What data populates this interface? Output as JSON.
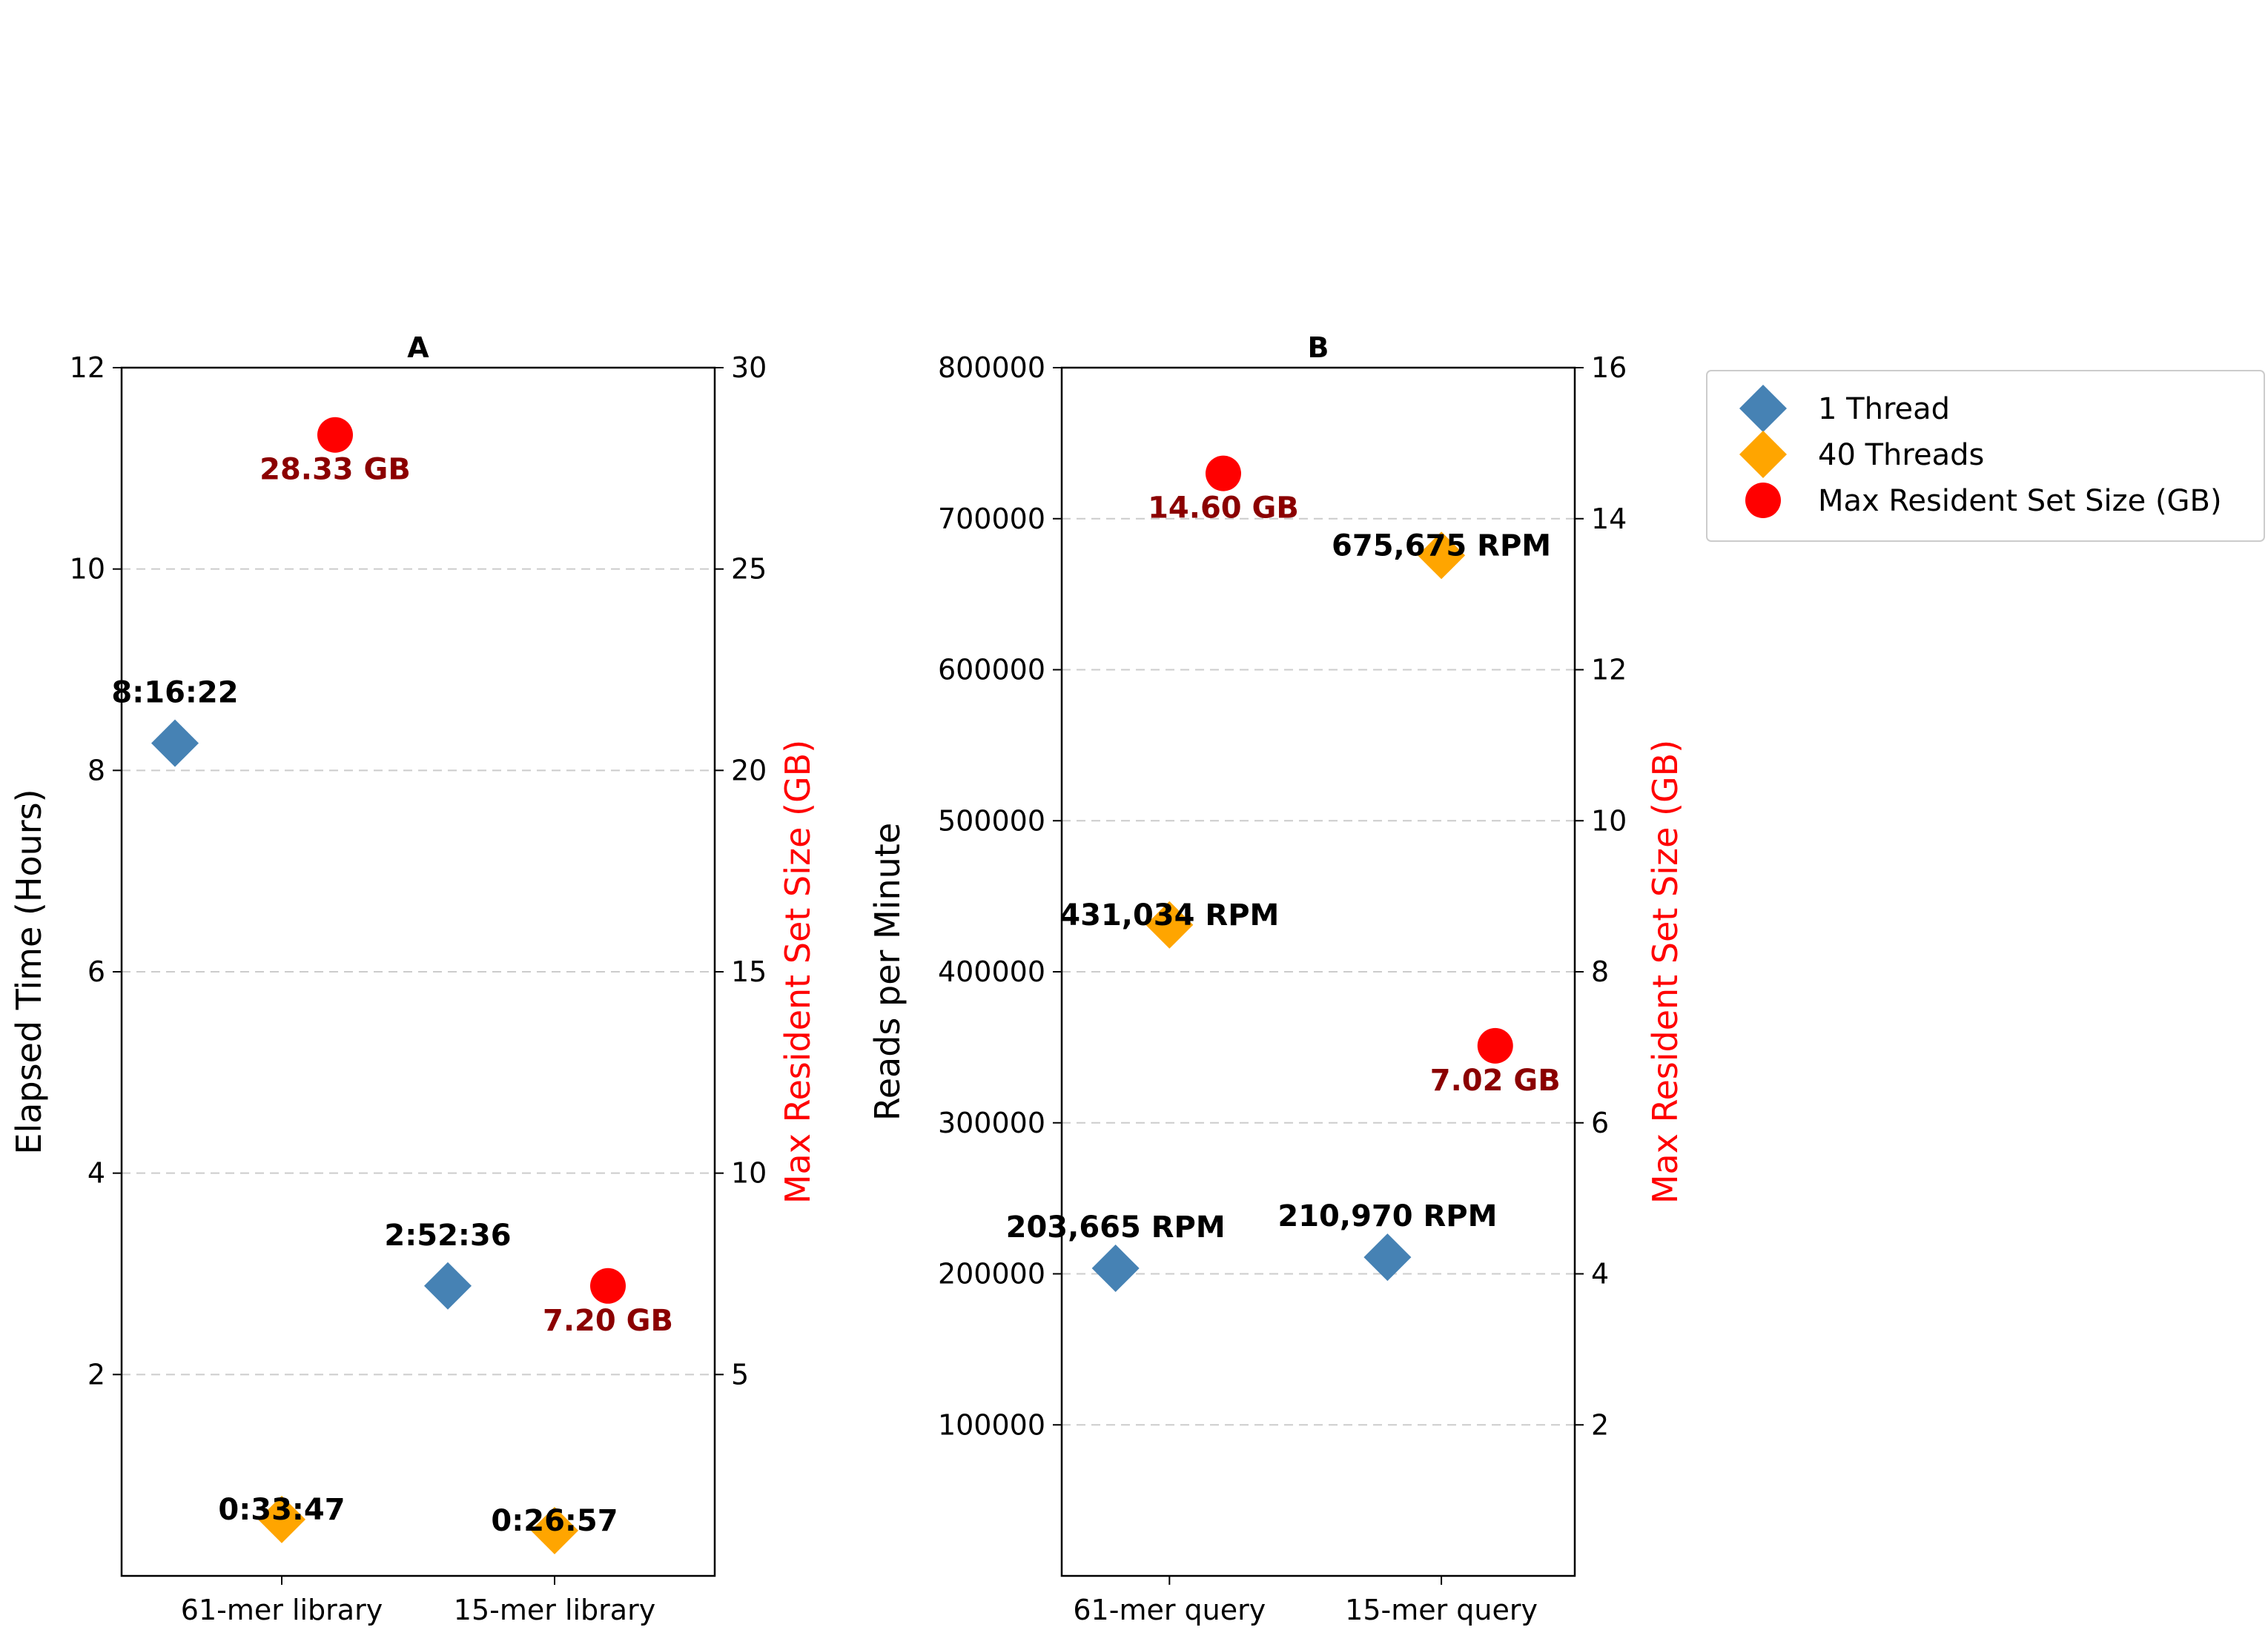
{
  "colors": {
    "thread1": "#4682B4",
    "thread40": "#FFA500",
    "rss": "#FF0000",
    "rss_label": "#8B0000",
    "rss_axis_label": "#FF0000",
    "grid": "#cccccc"
  },
  "legend": {
    "placement": "right of figure, top",
    "items": [
      {
        "label": "1 Thread",
        "marker": "diamond",
        "color": "#4682B4"
      },
      {
        "label": "40 Threads",
        "marker": "diamond",
        "color": "#FFA500"
      },
      {
        "label": "Max Resident Set Size (GB)",
        "marker": "circle",
        "color": "#FF0000"
      }
    ]
  },
  "chart_data": [
    {
      "panel": "A",
      "type": "scatter",
      "title": "A",
      "categories": [
        "61-mer library",
        "15-mer library"
      ],
      "ylabel": "Elapsed Time (Hours)",
      "ylim": [
        0,
        12
      ],
      "yticks": [
        "2",
        "4",
        "6",
        "8",
        "10",
        "12"
      ],
      "y2label": "Max Resident Set Size (GB)",
      "y2lim": [
        0,
        30
      ],
      "y2ticks": [
        "5",
        "10",
        "15",
        "20",
        "25",
        "30"
      ],
      "grid": "horizontal dashed",
      "series": [
        {
          "name": "1 Thread",
          "axis": "left",
          "points": [
            {
              "category": "61-mer library",
              "y": 8.27,
              "label": "8:16:22"
            },
            {
              "category": "15-mer library",
              "y": 2.88,
              "label": "2:52:36"
            }
          ]
        },
        {
          "name": "40 Threads",
          "axis": "left",
          "points": [
            {
              "category": "61-mer library",
              "y": 0.56,
              "label": "0:33:47"
            },
            {
              "category": "15-mer library",
              "y": 0.45,
              "label": "0:26:57"
            }
          ]
        },
        {
          "name": "Max Resident Set Size (GB)",
          "axis": "right",
          "points": [
            {
              "category": "61-mer library",
              "y": 28.33,
              "label": "28.33 GB"
            },
            {
              "category": "15-mer library",
              "y": 7.2,
              "label": "7.20 GB"
            }
          ]
        }
      ]
    },
    {
      "panel": "B",
      "type": "scatter",
      "title": "B",
      "categories": [
        "61-mer query",
        "15-mer query"
      ],
      "ylabel": "Reads per Minute",
      "ylim": [
        0,
        800000
      ],
      "yticks": [
        "100000",
        "200000",
        "300000",
        "400000",
        "500000",
        "600000",
        "700000",
        "800000"
      ],
      "y2label": "Max Resident Set Size (GB)",
      "y2lim": [
        0,
        16
      ],
      "y2ticks": [
        "2",
        "4",
        "6",
        "8",
        "10",
        "12",
        "14",
        "16"
      ],
      "grid": "horizontal dashed",
      "series": [
        {
          "name": "1 Thread",
          "axis": "left",
          "points": [
            {
              "category": "61-mer query",
              "y": 203665,
              "label": "203,665 RPM"
            },
            {
              "category": "15-mer query",
              "y": 210970,
              "label": "210,970 RPM"
            }
          ]
        },
        {
          "name": "40 Threads",
          "axis": "left",
          "points": [
            {
              "category": "61-mer query",
              "y": 431034,
              "label": "431,034 RPM"
            },
            {
              "category": "15-mer query",
              "y": 675675,
              "label": "675,675 RPM"
            }
          ]
        },
        {
          "name": "Max Resident Set Size (GB)",
          "axis": "right",
          "points": [
            {
              "category": "61-mer query",
              "y": 14.6,
              "label": "14.60 GB"
            },
            {
              "category": "15-mer query",
              "y": 7.02,
              "label": "7.02 GB"
            }
          ]
        }
      ]
    }
  ]
}
